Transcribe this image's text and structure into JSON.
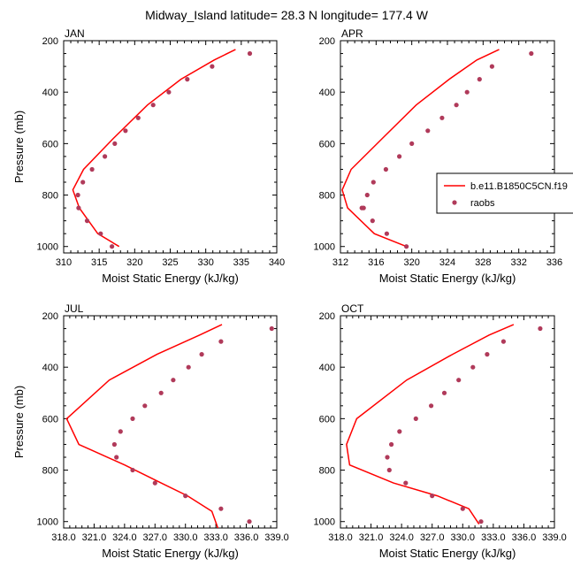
{
  "figure": {
    "title": "Midway_Island  latitude= 28.3 N longitude= 177.4 W"
  },
  "colors": {
    "model_line": "#ff0000",
    "raobs_marker": "#b03a5a"
  },
  "legend": {
    "entries": [
      "b.e11.B1850C5CN.f19",
      "raobs"
    ],
    "location": "right of APR panel"
  },
  "chart_data": [
    {
      "type": "line",
      "title": "JAN",
      "xlabel": "Moist Static Energy (kJ/kg)",
      "ylabel": "Pressure (mb)",
      "xlim": [
        310,
        340
      ],
      "ylim": [
        1025,
        200
      ],
      "xticks": [
        310,
        315,
        320,
        325,
        330,
        335,
        340
      ],
      "xtick_labels": [
        "310",
        "315",
        "320",
        "325",
        "330",
        "335",
        "340"
      ],
      "yticks": [
        200,
        400,
        600,
        800,
        1000
      ],
      "ytick_labels": [
        "200",
        "400",
        "600",
        "800",
        "1000"
      ],
      "grid": false,
      "series": [
        {
          "name": "b.e11.B1850C5CN.f19",
          "kind": "line",
          "x": [
            334.2,
            331.2,
            326.5,
            321.8,
            317.0,
            312.8,
            311.3,
            312.2,
            314.8,
            317.8
          ],
          "y": [
            234,
            275,
            350,
            450,
            580,
            700,
            780,
            850,
            950,
            1000
          ]
        },
        {
          "name": "raobs",
          "kind": "marker",
          "x": [
            336.2,
            330.9,
            327.4,
            324.8,
            322.6,
            320.5,
            318.7,
            317.2,
            315.8,
            314.0,
            312.7,
            312.0,
            312.1,
            313.3,
            315.2,
            316.8
          ],
          "y": [
            250,
            300,
            350,
            400,
            450,
            500,
            550,
            600,
            650,
            700,
            750,
            800,
            850,
            900,
            950,
            1000
          ]
        }
      ]
    },
    {
      "type": "line",
      "title": "APR",
      "xlabel": "Moist Static Energy (kJ/kg)",
      "ylabel": "",
      "xlim": [
        312,
        336
      ],
      "ylim": [
        1025,
        200
      ],
      "xticks": [
        312,
        316,
        320,
        324,
        328,
        332,
        336
      ],
      "xtick_labels": [
        "312",
        "316",
        "320",
        "324",
        "328",
        "332",
        "336"
      ],
      "yticks": [
        200,
        400,
        600,
        800,
        1000
      ],
      "ytick_labels": [
        "200",
        "400",
        "600",
        "800",
        "1000"
      ],
      "grid": false,
      "series": [
        {
          "name": "b.e11.B1850C5CN.f19",
          "kind": "line",
          "x": [
            329.8,
            327.3,
            324.2,
            320.5,
            316.7,
            313.2,
            312.2,
            312.8,
            315.8,
            319.4
          ],
          "y": [
            234,
            275,
            350,
            450,
            580,
            700,
            780,
            850,
            950,
            1000
          ]
        },
        {
          "name": "raobs",
          "kind": "marker",
          "x": [
            333.4,
            329.0,
            327.6,
            326.2,
            325.0,
            323.4,
            321.8,
            320.0,
            318.6,
            317.1,
            315.7,
            315.0,
            314.6,
            314.4,
            315.6,
            317.2,
            319.4
          ],
          "y": [
            250,
            300,
            350,
            400,
            450,
            500,
            550,
            600,
            650,
            700,
            750,
            800,
            850,
            850,
            900,
            950,
            1000
          ]
        }
      ]
    },
    {
      "type": "line",
      "title": "JUL",
      "xlabel": "Moist Static Energy (kJ/kg)",
      "ylabel": "Pressure (mb)",
      "xlim": [
        318,
        339
      ],
      "ylim": [
        1025,
        200
      ],
      "xticks": [
        318,
        321,
        324,
        327,
        330,
        333,
        336,
        339
      ],
      "xtick_labels": [
        "318.0",
        "321.0",
        "324.0",
        "327.0",
        "330.0",
        "333.0",
        "336.0",
        "339.0"
      ],
      "yticks": [
        200,
        400,
        600,
        800,
        1000
      ],
      "ytick_labels": [
        "200",
        "400",
        "600",
        "800",
        "1000"
      ],
      "grid": false,
      "series": [
        {
          "name": "b.e11.B1850C5CN.f19",
          "kind": "line",
          "x": [
            333.6,
            331.4,
            327.2,
            322.5,
            318.3,
            319.5,
            324.0,
            327.6,
            330.2,
            332.6,
            333.2
          ],
          "y": [
            234,
            275,
            350,
            450,
            600,
            700,
            780,
            850,
            900,
            960,
            1025
          ]
        },
        {
          "name": "raobs",
          "kind": "marker",
          "x": [
            338.5,
            333.5,
            331.6,
            330.3,
            328.8,
            327.6,
            326.0,
            324.8,
            323.6,
            323.0,
            323.2,
            324.8,
            327.0,
            330.0,
            333.5,
            336.3
          ],
          "y": [
            250,
            300,
            350,
            400,
            450,
            500,
            550,
            600,
            650,
            700,
            750,
            800,
            850,
            900,
            950,
            1000
          ]
        }
      ]
    },
    {
      "type": "line",
      "title": "OCT",
      "xlabel": "Moist Static Energy (kJ/kg)",
      "ylabel": "",
      "xlim": [
        318,
        339
      ],
      "ylim": [
        1025,
        200
      ],
      "xticks": [
        318,
        321,
        324,
        327,
        330,
        333,
        336,
        339
      ],
      "xtick_labels": [
        "318.0",
        "321.0",
        "324.0",
        "327.0",
        "330.0",
        "333.0",
        "336.0",
        "339.0"
      ],
      "yticks": [
        200,
        400,
        600,
        800,
        1000
      ],
      "ytick_labels": [
        "200",
        "400",
        "600",
        "800",
        "1000"
      ],
      "grid": false,
      "series": [
        {
          "name": "b.e11.B1850C5CN.f19",
          "kind": "line",
          "x": [
            335.0,
            332.6,
            329.0,
            324.5,
            319.6,
            318.6,
            318.9,
            323.2,
            327.5,
            330.6,
            331.6
          ],
          "y": [
            234,
            275,
            350,
            450,
            600,
            700,
            780,
            850,
            900,
            950,
            1010
          ]
        },
        {
          "name": "raobs",
          "kind": "marker",
          "x": [
            337.6,
            334.0,
            332.4,
            331.0,
            329.6,
            328.2,
            326.9,
            325.4,
            323.8,
            323.0,
            322.6,
            322.8,
            324.4,
            327.0,
            330.0,
            331.8
          ],
          "y": [
            250,
            300,
            350,
            400,
            450,
            500,
            550,
            600,
            650,
            700,
            750,
            800,
            850,
            900,
            950,
            1000
          ]
        }
      ]
    }
  ]
}
